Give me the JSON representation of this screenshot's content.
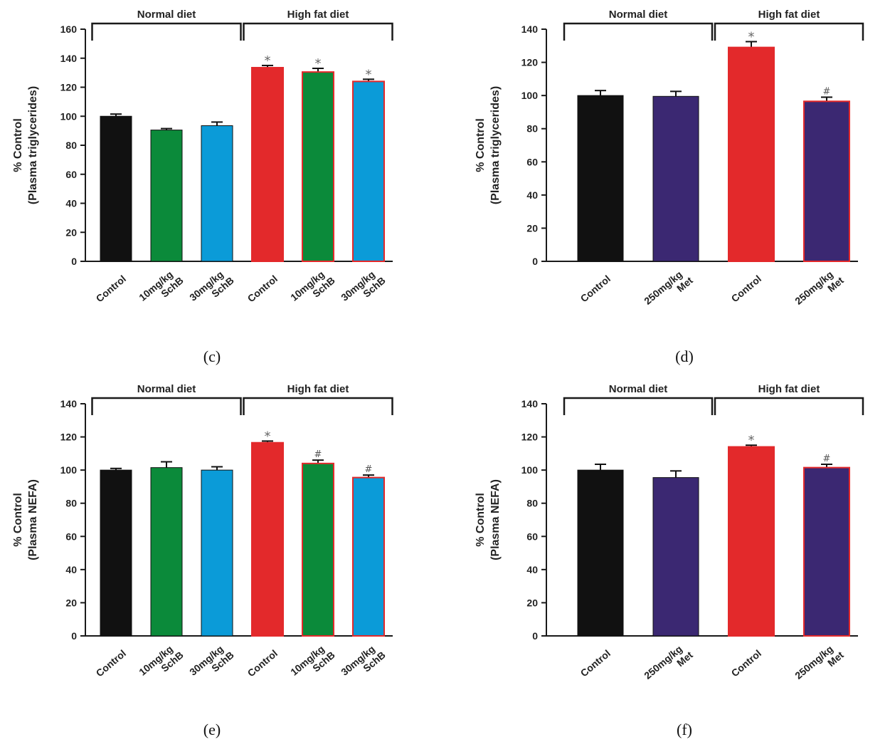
{
  "colors": {
    "control_normal": "#111111",
    "schb_10": "#0b8a3a",
    "schb_30": "#0b9bd8",
    "hfd_control": "#e3292b",
    "met": "#3b2872",
    "hfd_outline": "#e3292b",
    "axis": "#1a1a1a"
  },
  "chart_data": [
    {
      "id": "c",
      "panel_label": "(c)",
      "type": "bar",
      "ylabel_lines": [
        "% Control",
        "(Plasma triglycerides)"
      ],
      "ylim": [
        0,
        160
      ],
      "yticks": [
        "0",
        "20",
        "40",
        "60",
        "80",
        "100",
        "120",
        "140",
        "160"
      ],
      "groups": [
        {
          "label": "Normal diet",
          "from": 0,
          "to": 2
        },
        {
          "label": "High fat diet",
          "from": 3,
          "to": 5
        }
      ],
      "categories": [
        [
          "Control"
        ],
        [
          "10mg/kg",
          "SchB"
        ],
        [
          "30mg/kg",
          "SchB"
        ],
        [
          "Control"
        ],
        [
          "10mg/kg",
          "SchB"
        ],
        [
          "30mg/kg",
          "SchB"
        ]
      ],
      "values": [
        100,
        90.5,
        93.5,
        133.5,
        130.5,
        124
      ],
      "errors": [
        1.5,
        1,
        2.5,
        1.5,
        2.5,
        1.5
      ],
      "fills": [
        "control_normal",
        "schb_10",
        "schb_30",
        "hfd_control",
        "schb_10",
        "schb_30"
      ],
      "outlined": [
        false,
        false,
        false,
        true,
        true,
        true
      ],
      "sig": [
        "",
        "",
        "",
        "*",
        "*",
        "*"
      ],
      "grid": false
    },
    {
      "id": "d",
      "panel_label": "(d)",
      "type": "bar",
      "ylabel_lines": [
        "% Control",
        "(Plasma triglycerides)"
      ],
      "ylim": [
        0,
        140
      ],
      "yticks": [
        "0",
        "20",
        "40",
        "60",
        "80",
        "100",
        "120",
        "140"
      ],
      "groups": [
        {
          "label": "Normal diet",
          "from": 0,
          "to": 1
        },
        {
          "label": "High fat diet",
          "from": 2,
          "to": 3
        }
      ],
      "categories": [
        [
          "Control"
        ],
        [
          "250mg/kg",
          "Met"
        ],
        [
          "Control"
        ],
        [
          "250mg/kg",
          "Met"
        ]
      ],
      "values": [
        100,
        99.5,
        129,
        96.5
      ],
      "errors": [
        3,
        3,
        3.5,
        2.5
      ],
      "fills": [
        "control_normal",
        "met",
        "hfd_control",
        "met"
      ],
      "outlined": [
        false,
        false,
        true,
        true
      ],
      "sig": [
        "",
        "",
        "*",
        "#"
      ],
      "grid": false
    },
    {
      "id": "e",
      "panel_label": "(e)",
      "type": "bar",
      "ylabel_lines": [
        "% Control",
        "(Plasma NEFA)"
      ],
      "ylim": [
        0,
        140
      ],
      "yticks": [
        "0",
        "20",
        "40",
        "60",
        "80",
        "100",
        "120",
        "140"
      ],
      "groups": [
        {
          "label": "Normal diet",
          "from": 0,
          "to": 2
        },
        {
          "label": "High fat diet",
          "from": 3,
          "to": 5
        }
      ],
      "categories": [
        [
          "Control"
        ],
        [
          "10mg/kg",
          "SchB"
        ],
        [
          "30mg/kg",
          "SchB"
        ],
        [
          "Control"
        ],
        [
          "10mg/kg",
          "SchB"
        ],
        [
          "30mg/kg",
          "SchB"
        ]
      ],
      "values": [
        100,
        101.5,
        100,
        116.5,
        104,
        95.5
      ],
      "errors": [
        1,
        3.5,
        2,
        1,
        2,
        1.5
      ],
      "fills": [
        "control_normal",
        "schb_10",
        "schb_30",
        "hfd_control",
        "schb_10",
        "schb_30"
      ],
      "outlined": [
        false,
        false,
        false,
        true,
        true,
        true
      ],
      "sig": [
        "",
        "",
        "",
        "*",
        "#",
        "#"
      ],
      "grid": false
    },
    {
      "id": "f",
      "panel_label": "(f)",
      "type": "bar",
      "ylabel_lines": [
        "% Control",
        "(Plasma NEFA)"
      ],
      "ylim": [
        0,
        140
      ],
      "yticks": [
        "0",
        "20",
        "40",
        "60",
        "80",
        "100",
        "120",
        "140"
      ],
      "groups": [
        {
          "label": "Normal diet",
          "from": 0,
          "to": 1
        },
        {
          "label": "High fat diet",
          "from": 2,
          "to": 3
        }
      ],
      "categories": [
        [
          "Control"
        ],
        [
          "250mg/kg",
          "Met"
        ],
        [
          "Control"
        ],
        [
          "250mg/kg",
          "Met"
        ]
      ],
      "values": [
        100,
        95.5,
        114,
        101.5
      ],
      "errors": [
        3.5,
        4,
        1,
        2
      ],
      "fills": [
        "control_normal",
        "met",
        "hfd_control",
        "met"
      ],
      "outlined": [
        false,
        false,
        true,
        true
      ],
      "sig": [
        "",
        "",
        "*",
        "#"
      ],
      "grid": false
    }
  ]
}
